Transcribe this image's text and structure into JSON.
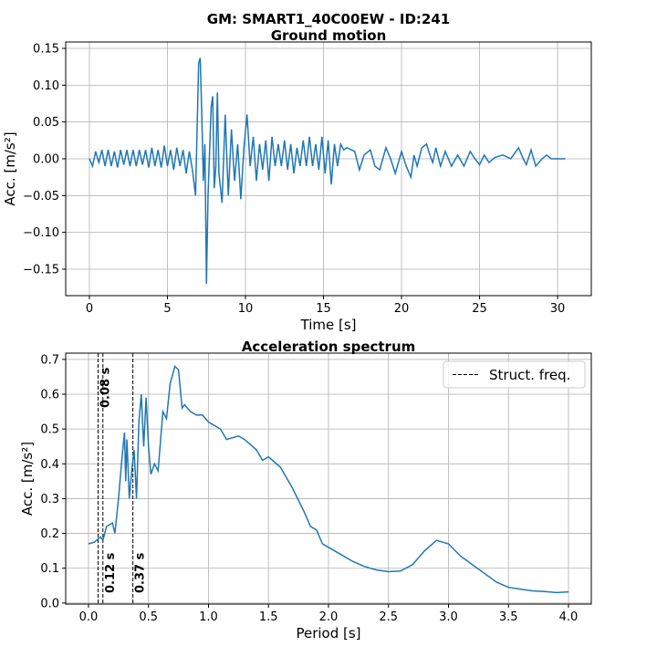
{
  "title": "GM: SMART1_40C00EW - ID:241",
  "chart_data": [
    {
      "type": "line",
      "title": "Ground motion",
      "x_label": "Time [s]",
      "y_label": "Acc. [m/s²]",
      "xlim": [
        -1.52,
        32.16
      ],
      "ylim": [
        -0.186,
        0.1587
      ],
      "xticks": [
        0,
        5,
        10,
        15,
        20,
        25,
        30
      ],
      "yticks": [
        {
          "value": -0.15,
          "label": "−0.15"
        },
        {
          "value": -0.1,
          "label": "−0.10"
        },
        {
          "value": -0.05,
          "label": "−0.05"
        },
        {
          "value": 0,
          "label": "0.00"
        },
        0.05,
        {
          "value": 0.1,
          "label": "0.10"
        },
        0.15
      ],
      "grid": true,
      "series": [
        {
          "color": "#1f77b4",
          "x": [
            0,
            0.2,
            0.4,
            0.6,
            0.8,
            1.0,
            1.2,
            1.4,
            1.6,
            1.8,
            2.0,
            2.2,
            2.4,
            2.6,
            2.8,
            3.0,
            3.2,
            3.4,
            3.6,
            3.8,
            4.0,
            4.2,
            4.4,
            4.6,
            4.8,
            5.0,
            5.2,
            5.4,
            5.6,
            5.8,
            6.0,
            6.2,
            6.4,
            6.6,
            6.8,
            7.0,
            7.1,
            7.2,
            7.3,
            7.4,
            7.5,
            7.6,
            7.8,
            7.9,
            8.0,
            8.1,
            8.2,
            8.3,
            8.5,
            8.7,
            8.9,
            9.1,
            9.3,
            9.5,
            9.7,
            9.9,
            10.1,
            10.3,
            10.5,
            10.7,
            10.9,
            11.1,
            11.3,
            11.5,
            11.7,
            11.9,
            12.1,
            12.3,
            12.5,
            12.7,
            12.9,
            13.1,
            13.3,
            13.5,
            13.7,
            13.9,
            14.1,
            14.3,
            14.5,
            14.7,
            14.9,
            15.1,
            15.3,
            15.5,
            15.7,
            15.9,
            16.1,
            16.3,
            16.5,
            17.0,
            17.3,
            17.6,
            18.0,
            18.3,
            18.6,
            19.0,
            19.3,
            19.6,
            20.0,
            20.3,
            20.6,
            20.8,
            21.0,
            21.3,
            21.6,
            21.9,
            22.0,
            22.2,
            22.5,
            22.8,
            23.2,
            23.6,
            24.0,
            24.4,
            24.7,
            25.0,
            25.3,
            25.6,
            26.0,
            26.5,
            27.0,
            27.5,
            27.8,
            28.0,
            28.3,
            28.6,
            29.0,
            29.3,
            29.6,
            30.0,
            30.5
          ],
          "values": [
            0,
            -0.01,
            0.01,
            -0.005,
            0.012,
            -0.01,
            0.012,
            -0.01,
            0.01,
            -0.012,
            0.012,
            -0.008,
            0.012,
            -0.01,
            0.012,
            -0.01,
            0.012,
            -0.008,
            0.012,
            -0.012,
            0.015,
            -0.01,
            0.012,
            -0.012,
            0.018,
            -0.01,
            0.012,
            -0.015,
            0.015,
            -0.01,
            0.012,
            -0.02,
            0.01,
            -0.015,
            -0.05,
            0.13,
            0.137,
            0.06,
            -0.03,
            0.02,
            -0.17,
            -0.05,
            0.07,
            0.085,
            -0.04,
            -0.01,
            0.09,
            -0.02,
            -0.06,
            0.06,
            -0.05,
            0.04,
            -0.03,
            0.02,
            -0.055,
            0.015,
            0.06,
            -0.01,
            0.03,
            -0.03,
            0.02,
            -0.015,
            0.025,
            -0.03,
            0.03,
            -0.01,
            0.02,
            -0.01,
            0.025,
            -0.015,
            0.02,
            -0.02,
            0.015,
            -0.01,
            0.025,
            -0.01,
            0.03,
            -0.01,
            0.02,
            -0.015,
            0.03,
            -0.02,
            0.025,
            -0.035,
            0.02,
            -0.01,
            0.02,
            0.012,
            0.015,
            0.01,
            -0.015,
            0.005,
            0.012,
            -0.01,
            -0.015,
            0.015,
            0,
            -0.02,
            0.01,
            -0.01,
            -0.025,
            0.005,
            -0.01,
            0.015,
            0.02,
            0,
            -0.005,
            0.015,
            -0.01,
            0.01,
            -0.01,
            0.005,
            -0.01,
            0.01,
            0,
            -0.008,
            0.005,
            -0.005,
            0.002,
            0.005,
            0,
            0.015,
            0,
            -0.008,
            0.012,
            -0.01,
            0,
            0.005,
            0,
            0,
            0
          ]
        }
      ]
    },
    {
      "type": "line",
      "title": "Acceleration spectrum",
      "x_label": "Period [s]",
      "y_label": "Acc. [m/s²]",
      "xlim": [
        -0.19,
        4.19
      ],
      "ylim": [
        -0.003,
        0.718
      ],
      "xticks": [
        {
          "value": 0,
          "label": "0.0"
        },
        0.5,
        {
          "value": 1,
          "label": "1.0"
        },
        1.5,
        {
          "value": 2,
          "label": "2.0"
        },
        2.5,
        {
          "value": 3,
          "label": "3.0"
        },
        3.5,
        {
          "value": 4,
          "label": "4.0"
        }
      ],
      "yticks": [
        {
          "value": 0,
          "label": "0.0"
        },
        0.1,
        0.2,
        0.3,
        0.4,
        0.5,
        0.6,
        0.7
      ],
      "grid": true,
      "legend": "upper right",
      "series": [
        {
          "color": "#1f77b4",
          "x": [
            0,
            0.05,
            0.1,
            0.12,
            0.15,
            0.2,
            0.22,
            0.25,
            0.28,
            0.3,
            0.31,
            0.32,
            0.34,
            0.36,
            0.38,
            0.4,
            0.42,
            0.44,
            0.46,
            0.48,
            0.5,
            0.52,
            0.55,
            0.58,
            0.62,
            0.65,
            0.68,
            0.72,
            0.75,
            0.78,
            0.8,
            0.85,
            0.9,
            0.95,
            1.0,
            1.1,
            1.15,
            1.25,
            1.3,
            1.4,
            1.45,
            1.5,
            1.6,
            1.7,
            1.8,
            1.85,
            1.9,
            1.95,
            2.0,
            2.1,
            2.2,
            2.3,
            2.4,
            2.5,
            2.6,
            2.7,
            2.8,
            2.9,
            3.0,
            3.1,
            3.2,
            3.3,
            3.4,
            3.5,
            3.6,
            3.7,
            3.8,
            3.9,
            4.0
          ],
          "values": [
            0.17,
            0.175,
            0.19,
            0.18,
            0.22,
            0.23,
            0.2,
            0.3,
            0.42,
            0.49,
            0.35,
            0.47,
            0.3,
            0.38,
            0.44,
            0.3,
            0.52,
            0.6,
            0.45,
            0.59,
            0.45,
            0.37,
            0.4,
            0.38,
            0.55,
            0.53,
            0.63,
            0.68,
            0.67,
            0.56,
            0.57,
            0.55,
            0.54,
            0.54,
            0.52,
            0.5,
            0.47,
            0.48,
            0.47,
            0.44,
            0.41,
            0.42,
            0.39,
            0.33,
            0.26,
            0.22,
            0.21,
            0.17,
            0.16,
            0.14,
            0.12,
            0.105,
            0.095,
            0.09,
            0.092,
            0.11,
            0.15,
            0.18,
            0.17,
            0.135,
            0.11,
            0.085,
            0.06,
            0.045,
            0.04,
            0.035,
            0.033,
            0.03,
            0.032
          ]
        }
      ],
      "vlines": {
        "name": "Struct. freq.",
        "color": "#000000",
        "values": [
          0.08,
          0.12,
          0.37
        ],
        "labels": [
          "0.08 s",
          "0.12 s",
          "0.37 s"
        ]
      }
    }
  ]
}
